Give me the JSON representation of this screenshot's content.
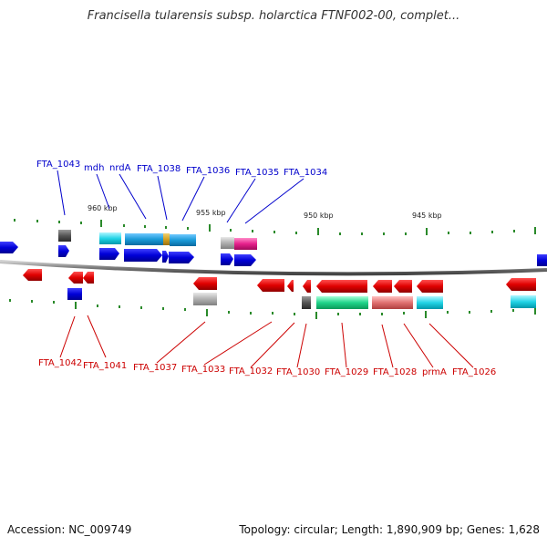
{
  "title": "Francisella tularensis subsp. holarctica FTNF002-00, complet...",
  "footer": {
    "accession": "Accession: NC_009749",
    "stats": "Topology: circular; Length: 1,890,909 bp; Genes: 1,628"
  },
  "scale_labels": [
    "960 kbp",
    "955 kbp",
    "950 kbp",
    "945 kbp"
  ],
  "top_gene_labels": [
    "FTA_1043",
    "mdh",
    "nrdA",
    "FTA_1038",
    "FTA_1036",
    "FTA_1035",
    "FTA_1034"
  ],
  "bottom_gene_labels": [
    "FTA_1042",
    "FTA_1041",
    "FTA_1037",
    "FTA_1033",
    "FTA_1032",
    "FTA_1030",
    "FTA_1029",
    "FTA_1028",
    "prmA",
    "FTA_1026"
  ],
  "colors": {
    "forward_strand": "#0000e0",
    "reverse_strand": "#e00000",
    "backbone": "#888888",
    "tick": "#2a8a2a",
    "cyan_feature": "#22d4e6",
    "green_feature": "#1fd48a",
    "magenta_feature": "#e6208c",
    "pink_feature": "#e07070",
    "gray_feature": "#9a9a9a",
    "dark_feature": "#555555",
    "orange_feature": "#d4a020"
  }
}
